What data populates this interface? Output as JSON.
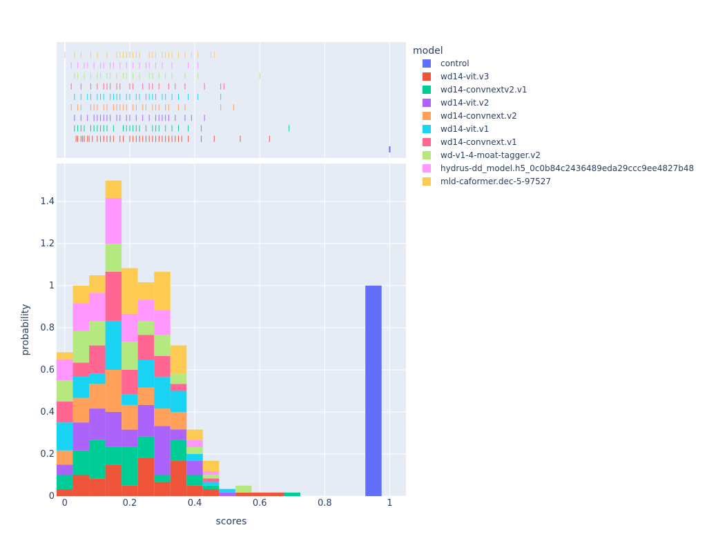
{
  "chart_data": {
    "type": "bar",
    "barmode": "stack",
    "bin_width": 0.05,
    "bin_starts": [
      0,
      0.05,
      0.1,
      0.15,
      0.2,
      0.25,
      0.3,
      0.35,
      0.4,
      0.45,
      0.5,
      0.55,
      0.6,
      0.65,
      0.7,
      0.75,
      0.8,
      0.85,
      0.9,
      0.95
    ],
    "xlabel": "scores",
    "ylabel": "probability",
    "xlim": [
      -0.025,
      1.05
    ],
    "ylim": [
      0,
      1.58
    ],
    "x_ticks": [
      0,
      0.2,
      0.4,
      0.6,
      0.8,
      1
    ],
    "x_tick_labels": [
      "0",
      "0.2",
      "0.4",
      "0.6",
      "0.8",
      "1"
    ],
    "y_ticks": [
      0,
      0.2,
      0.4,
      0.6,
      0.8,
      1,
      1.2,
      1.4
    ],
    "y_tick_labels": [
      "0",
      "0.2",
      "0.4",
      "0.6",
      "0.8",
      "1",
      "1.2",
      "1.4"
    ],
    "legend_title": "model",
    "legend_position": "right",
    "grid": true,
    "plot_bgcolor": "#E5ECF6",
    "series": [
      {
        "name": "control",
        "color": "#636EFA",
        "values": [
          0,
          0,
          0,
          0,
          0,
          0,
          0,
          0,
          0,
          0,
          0,
          0,
          0,
          0,
          0,
          0,
          0,
          0,
          0,
          1.0
        ],
        "rug": [
          1.0
        ]
      },
      {
        "name": "wd14-vit.v3",
        "color": "#EF553B",
        "values": [
          0.033,
          0.1,
          0.083,
          0.15,
          0.05,
          0.183,
          0.067,
          0.167,
          0.05,
          0.033,
          0,
          0.017,
          0.017,
          0.017,
          0,
          0,
          0,
          0,
          0,
          0
        ],
        "rug": [
          0.035,
          0.04,
          0.05,
          0.055,
          0.06,
          0.07,
          0.075,
          0.085,
          0.1,
          0.11,
          0.12,
          0.13,
          0.14,
          0.15,
          0.17,
          0.18,
          0.2,
          0.21,
          0.22,
          0.23,
          0.24,
          0.25,
          0.26,
          0.27,
          0.28,
          0.29,
          0.3,
          0.31,
          0.32,
          0.33,
          0.34,
          0.35,
          0.36,
          0.38,
          0.42,
          0.46,
          0.54,
          0.63
        ]
      },
      {
        "name": "wd14-convnextv2.v1",
        "color": "#00CC96",
        "values": [
          0.067,
          0.117,
          0.183,
          0.083,
          0.183,
          0.1,
          0.033,
          0.1,
          0.05,
          0.017,
          0,
          0,
          0,
          0,
          0.017,
          0,
          0,
          0,
          0,
          0
        ],
        "rug": [
          0.03,
          0.04,
          0.05,
          0.06,
          0.08,
          0.09,
          0.1,
          0.11,
          0.12,
          0.13,
          0.15,
          0.18,
          0.19,
          0.2,
          0.21,
          0.22,
          0.23,
          0.25,
          0.27,
          0.28,
          0.29,
          0.31,
          0.33,
          0.35,
          0.38,
          0.42,
          0.69
        ]
      },
      {
        "name": "wd14-vit.v2",
        "color": "#AB63FA",
        "values": [
          0.05,
          0.133,
          0.15,
          0.167,
          0.083,
          0.15,
          0.233,
          0.05,
          0.067,
          0,
          0.017,
          0,
          0,
          0,
          0,
          0,
          0,
          0,
          0,
          0
        ],
        "rug": [
          0.03,
          0.05,
          0.07,
          0.09,
          0.1,
          0.11,
          0.12,
          0.13,
          0.14,
          0.16,
          0.17,
          0.19,
          0.2,
          0.22,
          0.24,
          0.26,
          0.28,
          0.29,
          0.3,
          0.31,
          0.32,
          0.34,
          0.37,
          0.39,
          0.43
        ]
      },
      {
        "name": "wd14-convnext.v2",
        "color": "#FFA15A",
        "values": [
          0.067,
          0.117,
          0.117,
          0.2,
          0.117,
          0.083,
          0.083,
          0.083,
          0,
          0,
          0,
          0,
          0,
          0,
          0,
          0,
          0,
          0,
          0,
          0
        ],
        "rug": [
          0.02,
          0.04,
          0.05,
          0.08,
          0.09,
          0.1,
          0.12,
          0.13,
          0.15,
          0.16,
          0.17,
          0.18,
          0.19,
          0.21,
          0.22,
          0.24,
          0.25,
          0.27,
          0.28,
          0.29,
          0.31,
          0.32,
          0.35,
          0.37,
          0.48,
          0.52
        ]
      },
      {
        "name": "wd14-vit.v1",
        "color": "#19D3F3",
        "values": [
          0.133,
          0.1,
          0.05,
          0.233,
          0.05,
          0.133,
          0.15,
          0.1,
          0.033,
          0.017,
          0.017,
          0,
          0,
          0,
          0,
          0,
          0,
          0,
          0,
          0
        ],
        "rug": [
          0.03,
          0.05,
          0.07,
          0.08,
          0.1,
          0.11,
          0.12,
          0.14,
          0.15,
          0.16,
          0.17,
          0.19,
          0.2,
          0.22,
          0.23,
          0.25,
          0.26,
          0.27,
          0.28,
          0.3,
          0.31,
          0.33,
          0.35,
          0.38,
          0.41,
          0.48
        ]
      },
      {
        "name": "wd14-convnext.v1",
        "color": "#FF6692",
        "values": [
          0.1,
          0.067,
          0.133,
          0.233,
          0.117,
          0.117,
          0.1,
          0.033,
          0,
          0.017,
          0,
          0,
          0,
          0,
          0,
          0,
          0,
          0,
          0,
          0
        ],
        "rug": [
          0.02,
          0.05,
          0.08,
          0.1,
          0.12,
          0.13,
          0.14,
          0.16,
          0.17,
          0.2,
          0.21,
          0.24,
          0.26,
          0.27,
          0.29,
          0.32,
          0.34,
          0.37,
          0.43,
          0.48,
          0.49
        ]
      },
      {
        "name": "wd-v1-4-moat-tagger.v2",
        "color": "#B6E880",
        "values": [
          0.1,
          0.15,
          0.117,
          0.133,
          0.133,
          0.067,
          0.1,
          0.05,
          0.033,
          0.017,
          0,
          0.033,
          0,
          0,
          0,
          0,
          0,
          0,
          0,
          0
        ],
        "rug": [
          0.03,
          0.04,
          0.06,
          0.08,
          0.1,
          0.11,
          0.13,
          0.14,
          0.16,
          0.18,
          0.19,
          0.21,
          0.23,
          0.26,
          0.27,
          0.29,
          0.31,
          0.33,
          0.37,
          0.41,
          0.6
        ]
      },
      {
        "name": "hydrus-dd_model.h5_0c0b84c2436489eda29ccc9ee4827b48",
        "color": "#FF97FF",
        "values": [
          0.1,
          0.133,
          0.133,
          0.217,
          0.133,
          0.1,
          0.117,
          0,
          0.033,
          0.017,
          0,
          0,
          0,
          0,
          0,
          0,
          0,
          0,
          0,
          0
        ],
        "rug": [
          0.02,
          0.04,
          0.06,
          0.07,
          0.09,
          0.11,
          0.12,
          0.14,
          0.15,
          0.17,
          0.19,
          0.21,
          0.23,
          0.25,
          0.26,
          0.28,
          0.3,
          0.33,
          0.38,
          0.41
        ]
      },
      {
        "name": "mld-caformer.dec-5-97527",
        "color": "#FECB52",
        "values": [
          0.033,
          0.083,
          0.083,
          0.083,
          0.217,
          0.083,
          0.183,
          0.133,
          0.05,
          0.05,
          0,
          0,
          0,
          0,
          0,
          0,
          0,
          0,
          0,
          0
        ],
        "rug": [
          0.0,
          0.03,
          0.05,
          0.08,
          0.1,
          0.13,
          0.16,
          0.17,
          0.18,
          0.19,
          0.2,
          0.21,
          0.22,
          0.23,
          0.26,
          0.27,
          0.28,
          0.3,
          0.31,
          0.32,
          0.33,
          0.35,
          0.37,
          0.39,
          0.41,
          0.45,
          0.46
        ]
      }
    ]
  }
}
